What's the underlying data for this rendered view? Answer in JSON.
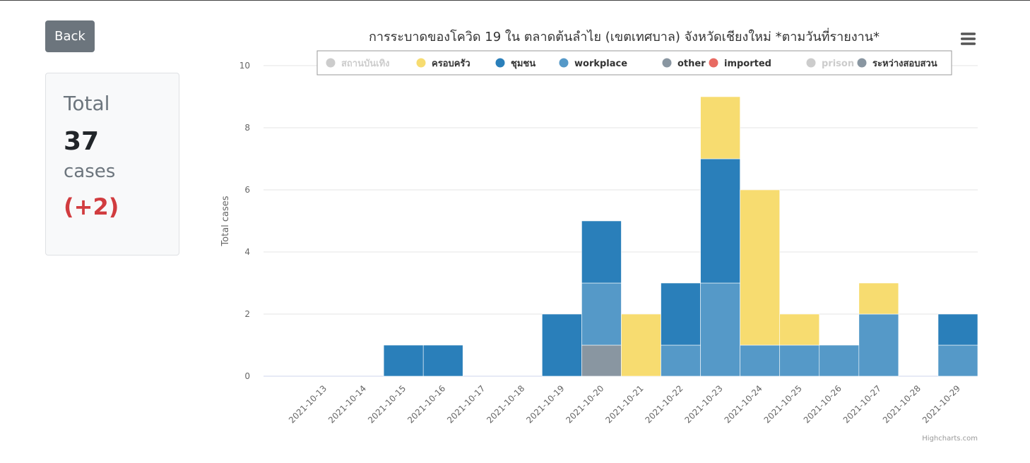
{
  "back_label": "Back",
  "summary": {
    "label": "Total",
    "value": "37",
    "unit": "cases",
    "delta": "(+2)"
  },
  "credits": "Highcharts.com",
  "chart_data": {
    "type": "bar",
    "stacked": true,
    "title": "การระบาดของโควิด 19 ใน ตลาดต้นลำไย (เขตเทศบาล) จังหวัดเชียงใหม่ *ตามวันที่รายงาน*",
    "xlabel": "",
    "ylabel": "Total cases",
    "ylim": [
      0,
      10
    ],
    "yticks": [
      0,
      2,
      4,
      6,
      8,
      10
    ],
    "grid": true,
    "legend_placement": "top-center",
    "categories": [
      "2021-10-13",
      "2021-10-14",
      "2021-10-15",
      "2021-10-16",
      "2021-10-17",
      "2021-10-18",
      "2021-10-19",
      "2021-10-20",
      "2021-10-21",
      "2021-10-22",
      "2021-10-23",
      "2021-10-24",
      "2021-10-25",
      "2021-10-26",
      "2021-10-27",
      "2021-10-28",
      "2021-10-29"
    ],
    "series": [
      {
        "name": "สถานบันเทิง",
        "color": "#cccccc",
        "visible": false,
        "values": [
          0,
          0,
          0,
          0,
          0,
          0,
          0,
          0,
          0,
          0,
          0,
          0,
          0,
          0,
          0,
          0,
          0
        ]
      },
      {
        "name": "ครอบครัว",
        "color": "#f7dc70",
        "visible": true,
        "values": [
          0,
          0,
          0,
          0,
          0,
          0,
          0,
          0,
          2,
          0,
          2,
          5,
          1,
          0,
          1,
          0,
          0
        ]
      },
      {
        "name": "ชุมชน",
        "color": "#2a7fba",
        "visible": true,
        "values": [
          0,
          0,
          1,
          1,
          0,
          0,
          2,
          2,
          0,
          2,
          4,
          0,
          0,
          0,
          0,
          0,
          1
        ]
      },
      {
        "name": "workplace",
        "color": "#5599c8",
        "visible": true,
        "values": [
          0,
          0,
          0,
          0,
          0,
          0,
          0,
          2,
          0,
          1,
          3,
          1,
          1,
          1,
          2,
          0,
          1
        ]
      },
      {
        "name": "other",
        "color": "#8996a1",
        "visible": true,
        "values": [
          0,
          0,
          0,
          0,
          0,
          0,
          0,
          1,
          0,
          0,
          0,
          0,
          0,
          0,
          0,
          0,
          0
        ]
      },
      {
        "name": "imported",
        "color": "#e86a62",
        "visible": true,
        "values": [
          0,
          0,
          0,
          0,
          0,
          0,
          0,
          0,
          0,
          0,
          0,
          0,
          0,
          0,
          0,
          0,
          0
        ]
      },
      {
        "name": "prison",
        "color": "#cccccc",
        "visible": false,
        "values": [
          0,
          0,
          0,
          0,
          0,
          0,
          0,
          0,
          0,
          0,
          0,
          0,
          0,
          0,
          0,
          0,
          0
        ]
      },
      {
        "name": "ระหว่างสอบสวน",
        "color": "#8996a1",
        "visible": true,
        "values": [
          0,
          0,
          0,
          0,
          0,
          0,
          0,
          0,
          0,
          0,
          0,
          0,
          0,
          0,
          0,
          0,
          0
        ]
      }
    ]
  }
}
